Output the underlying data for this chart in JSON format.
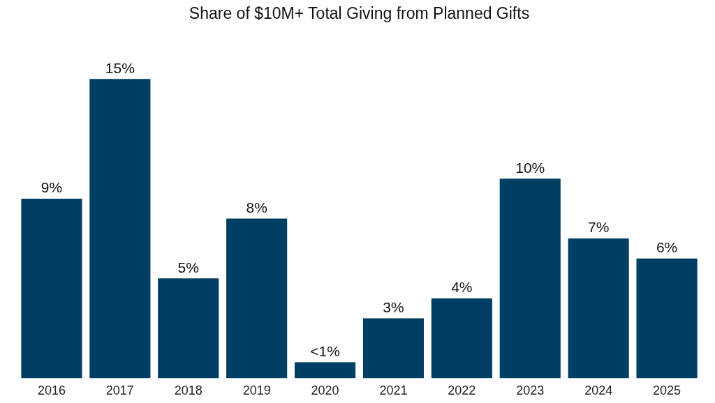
{
  "chart_data": {
    "type": "bar",
    "title": "Share of $10M+ Total Giving from Planned Gifts",
    "categories": [
      "2016",
      "2017",
      "2018",
      "2019",
      "2020",
      "2021",
      "2022",
      "2023",
      "2024",
      "2025"
    ],
    "values": [
      9,
      15,
      5,
      8,
      0.8,
      3,
      4,
      10,
      7,
      6
    ],
    "value_labels": [
      "9%",
      "15%",
      "5%",
      "8%",
      "<1%",
      "3%",
      "4%",
      "10%",
      "7%",
      "6%"
    ],
    "color": "#003f64"
  }
}
